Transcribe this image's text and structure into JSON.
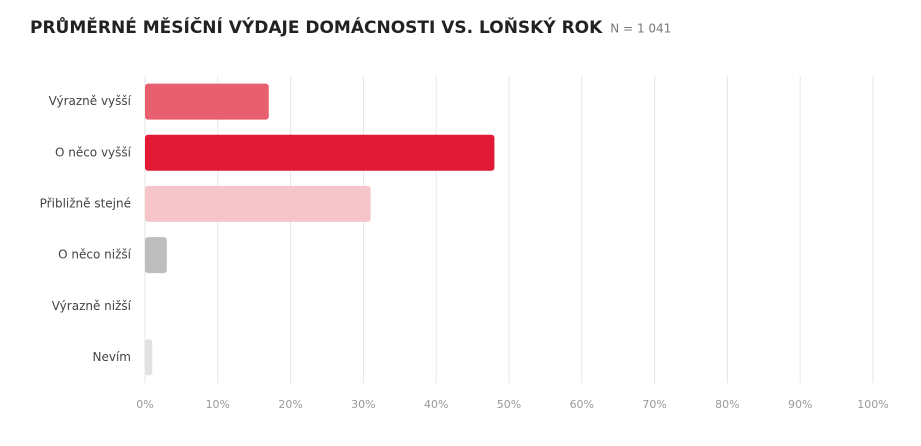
{
  "chart_data": {
    "type": "bar",
    "orientation": "horizontal",
    "title": "PRŮMĚRNÉ MĚSÍČNÍ VÝDAJE DOMÁCNOSTI VS. LOŇSKÝ ROK",
    "subtitle": "N = 1 041",
    "categories": [
      "Výrazně vyšší",
      "O něco vyšší",
      "Přibližně stejné",
      "O něco nižší",
      "Výrazně nižší",
      "Nevím"
    ],
    "values": [
      17,
      48,
      31,
      3,
      0,
      1
    ],
    "colors": [
      "#e8606f",
      "#e31a35",
      "#f5c5ca",
      "#bdbdbd",
      "#d9d9d9",
      "#e2e2e2"
    ],
    "xlim": [
      0,
      100
    ],
    "xticks": [
      {
        "value": 0,
        "label": "0%"
      },
      {
        "value": 10,
        "label": "10%"
      },
      {
        "value": 20,
        "label": "20%"
      },
      {
        "value": 30,
        "label": "30%"
      },
      {
        "value": 40,
        "label": "40%"
      },
      {
        "value": 50,
        "label": "50%"
      },
      {
        "value": 60,
        "label": "60%"
      },
      {
        "value": 70,
        "label": "70%"
      },
      {
        "value": 80,
        "label": "80%"
      },
      {
        "value": 90,
        "label": "90%"
      },
      {
        "value": 100,
        "label": "100%"
      }
    ],
    "grid": true
  }
}
